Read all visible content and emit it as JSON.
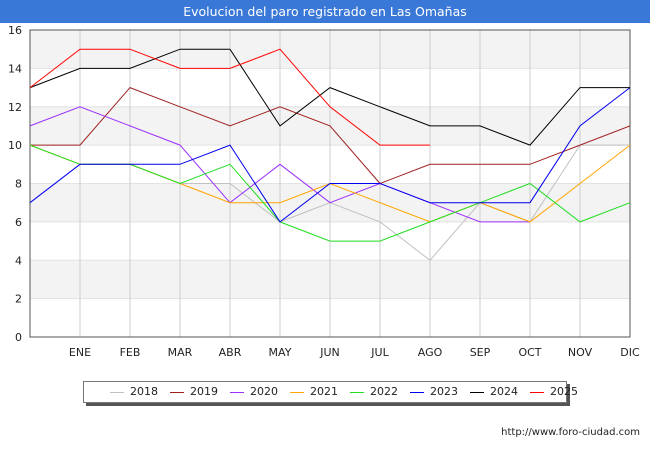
{
  "header": {
    "title": "Evolucion del paro registrado en Las Omañas"
  },
  "footer": {
    "url": "http://www.foro-ciudad.com"
  },
  "chart_data": {
    "type": "line",
    "title": "Evolucion del paro registrado en Las Omañas",
    "xlabel": "",
    "ylabel": "",
    "categories": [
      "",
      "ENE",
      "FEB",
      "MAR",
      "ABR",
      "MAY",
      "JUN",
      "JUL",
      "AGO",
      "SEP",
      "OCT",
      "NOV",
      "DIC"
    ],
    "ylim": [
      0,
      16
    ],
    "yticks": [
      0,
      2,
      4,
      6,
      8,
      10,
      12,
      14,
      16
    ],
    "grid": true,
    "legend_position": "bottom",
    "series": [
      {
        "name": "2018",
        "color": "#c0c0c0",
        "values": [
          10,
          9,
          9,
          8,
          8,
          6,
          7,
          6,
          4,
          7,
          6,
          10,
          10
        ]
      },
      {
        "name": "2019",
        "color": "#a02020",
        "values": [
          10,
          10,
          13,
          12,
          11,
          12,
          11,
          8,
          9,
          9,
          9,
          10,
          11
        ]
      },
      {
        "name": "2020",
        "color": "#9b30ff",
        "values": [
          11,
          12,
          11,
          10,
          7,
          9,
          7,
          8,
          7,
          6,
          6,
          null,
          null
        ]
      },
      {
        "name": "2021",
        "color": "#ffa500",
        "values": [
          10,
          9,
          9,
          8,
          7,
          7,
          8,
          7,
          6,
          7,
          6,
          8,
          10
        ]
      },
      {
        "name": "2022",
        "color": "#22dd22",
        "values": [
          10,
          9,
          9,
          8,
          9,
          6,
          5,
          5,
          6,
          7,
          8,
          6,
          7
        ]
      },
      {
        "name": "2023",
        "color": "#0000ee",
        "values": [
          7,
          9,
          9,
          9,
          10,
          6,
          8,
          8,
          7,
          7,
          7,
          11,
          13
        ]
      },
      {
        "name": "2024",
        "color": "#000000",
        "values": [
          13,
          14,
          14,
          15,
          15,
          11,
          13,
          12,
          11,
          11,
          10,
          13,
          13
        ]
      },
      {
        "name": "2025",
        "color": "#ff0000",
        "values": [
          13,
          15,
          15,
          14,
          14,
          15,
          12,
          10,
          10,
          null,
          null,
          null,
          null
        ]
      }
    ]
  }
}
